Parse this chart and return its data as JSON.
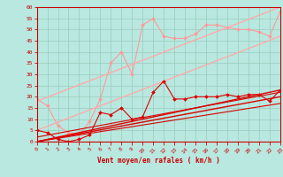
{
  "xlabel": "Vent moyen/en rafales ( km/h )",
  "xlim": [
    0,
    23
  ],
  "ylim": [
    0,
    60
  ],
  "xticks": [
    0,
    1,
    2,
    3,
    4,
    5,
    6,
    7,
    8,
    9,
    10,
    11,
    12,
    13,
    14,
    15,
    16,
    17,
    18,
    19,
    20,
    21,
    22,
    23
  ],
  "yticks": [
    0,
    5,
    10,
    15,
    20,
    25,
    30,
    35,
    40,
    45,
    50,
    55,
    60
  ],
  "bg_color": "#b8e8e0",
  "grid_color": "#99ccbb",
  "series": [
    {
      "name": "light_wavy",
      "color": "#ff9999",
      "lw": 0.8,
      "marker": "D",
      "ms": 2.0,
      "x": [
        0,
        1,
        2,
        3,
        4,
        5,
        6,
        7,
        8,
        9,
        10,
        11,
        12,
        13,
        14,
        15,
        16,
        17,
        18,
        19,
        20,
        21,
        22,
        23
      ],
      "y": [
        19,
        16,
        7,
        4,
        3,
        9,
        19,
        35,
        40,
        30,
        52,
        55,
        47,
        46,
        46,
        48,
        52,
        52,
        51,
        50,
        50,
        49,
        47,
        58
      ]
    },
    {
      "name": "light_straight_upper",
      "color": "#ffaaaa",
      "lw": 1.0,
      "marker": null,
      "ms": 0,
      "x": [
        0,
        23
      ],
      "y": [
        18,
        60
      ]
    },
    {
      "name": "light_straight_lower",
      "color": "#ffaaaa",
      "lw": 1.0,
      "marker": null,
      "ms": 0,
      "x": [
        0,
        23
      ],
      "y": [
        5,
        47
      ]
    },
    {
      "name": "dark_wavy",
      "color": "#dd0000",
      "lw": 0.8,
      "marker": "D",
      "ms": 2.0,
      "x": [
        0,
        1,
        2,
        3,
        4,
        5,
        6,
        7,
        8,
        9,
        10,
        11,
        12,
        13,
        14,
        15,
        16,
        17,
        18,
        19,
        20,
        21,
        22,
        23
      ],
      "y": [
        5,
        4,
        1,
        0,
        1,
        3,
        13,
        12,
        15,
        10,
        11,
        22,
        27,
        19,
        19,
        20,
        20,
        20,
        21,
        20,
        21,
        21,
        18,
        23
      ]
    },
    {
      "name": "dark_straight1",
      "color": "#dd0000",
      "lw": 1.0,
      "marker": null,
      "ms": 0,
      "x": [
        0,
        23
      ],
      "y": [
        0,
        23
      ]
    },
    {
      "name": "dark_straight2",
      "color": "#dd0000",
      "lw": 1.0,
      "marker": null,
      "ms": 0,
      "x": [
        0,
        23
      ],
      "y": [
        0,
        20
      ]
    },
    {
      "name": "dark_straight3",
      "color": "#dd0000",
      "lw": 0.8,
      "marker": null,
      "ms": 0,
      "x": [
        0,
        23
      ],
      "y": [
        2,
        22
      ]
    },
    {
      "name": "dark_straight4",
      "color": "#dd0000",
      "lw": 0.8,
      "marker": null,
      "ms": 0,
      "x": [
        0,
        23
      ],
      "y": [
        0,
        17
      ]
    }
  ]
}
